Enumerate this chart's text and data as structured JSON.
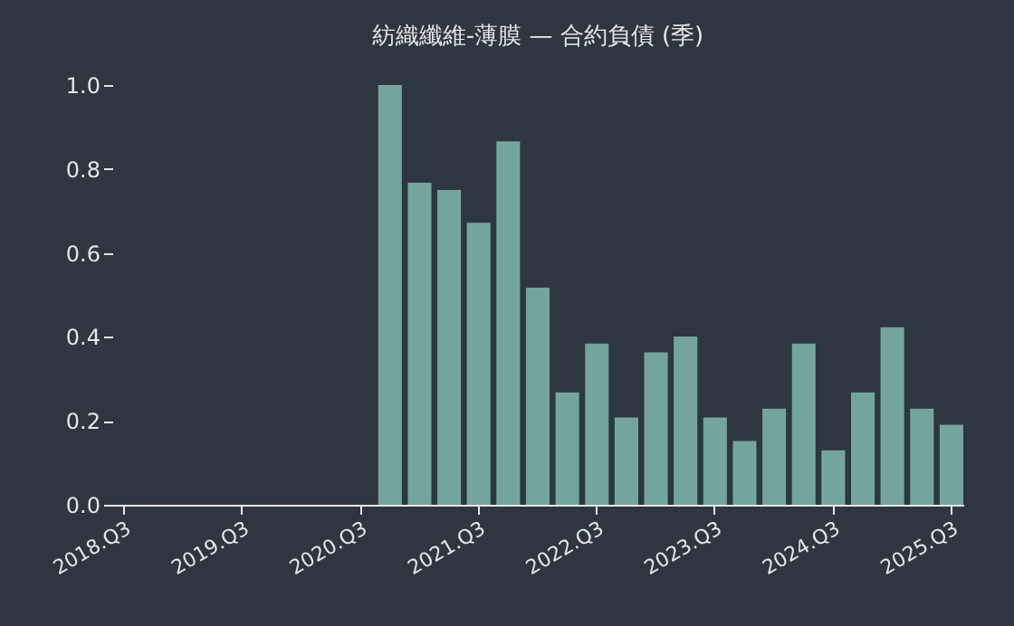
{
  "chart_data": {
    "type": "bar",
    "title": "紡織纖維-薄膜 — 合約負債 (季)",
    "categories": [
      "2018.Q3",
      null,
      null,
      null,
      "2019.Q3",
      null,
      null,
      null,
      "2020.Q3",
      null,
      null,
      null,
      "2021.Q3",
      null,
      null,
      null,
      "2022.Q3",
      null,
      null,
      null,
      "2023.Q3",
      null,
      null,
      null,
      "2024.Q3",
      null,
      null,
      null,
      "2025.Q3"
    ],
    "values": [
      null,
      null,
      null,
      null,
      null,
      null,
      null,
      null,
      null,
      1.0,
      0.767,
      0.75,
      0.672,
      0.866,
      0.517,
      0.268,
      0.384,
      0.208,
      0.363,
      0.401,
      0.208,
      0.152,
      0.229,
      0.384,
      0.13,
      0.268,
      0.423,
      0.229,
      0.191
    ],
    "color": "#73a59d",
    "ylim": [
      0,
      1
    ],
    "yticks": [
      {
        "value": 0,
        "label": "0.0"
      },
      0.2,
      0.4,
      0.6,
      0.8,
      {
        "value": 1,
        "label": "1.0"
      }
    ]
  }
}
